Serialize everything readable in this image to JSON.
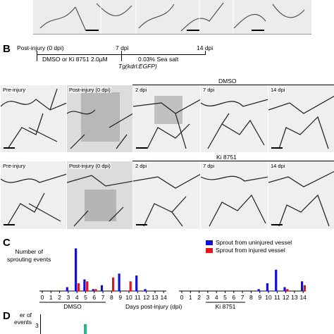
{
  "panel_b": {
    "letter": "B",
    "timeline": {
      "post_injury": "Post-injury (0 dpi)",
      "dpi7": "7 dpi",
      "dpi14": "14 dpi",
      "treatment": "DMSO or Ki 8751 2.0µM",
      "sea_salt": "0.03% Sea salt",
      "transgene": "Tg(kdrl:EGFP)"
    },
    "dmso_label": "DMSO",
    "ki_label": "Ki 8751",
    "row1_frames": [
      "Pre-injury",
      "Post-injury (0 dpi)",
      "2 dpi",
      "7 dpi",
      "14 dpi"
    ],
    "row2_frames": [
      "Pre-injury",
      "Post-injury (0 dpi)",
      "2 dpi",
      "7 dpi",
      "14 dpi"
    ]
  },
  "panel_c": {
    "letter": "C",
    "ylabel_lines": [
      "Number of",
      "sprouting events"
    ],
    "legend": {
      "blue": "Sprout from uninjured vessel",
      "red": "Sprout from injured vessel"
    },
    "xlabel": "Days post-injury (dpi)",
    "group_labels": [
      "DMSO",
      "Ki 8751"
    ],
    "colors": {
      "blue": "#1010d8",
      "red": "#e0141c"
    }
  },
  "panel_d": {
    "letter": "D",
    "ylabel_lines": [
      "er of",
      "events"
    ],
    "ytick": "3",
    "bar_color": "#2bb58a"
  },
  "chart_data": {
    "type": "bar",
    "title": "",
    "xlabel": "Days post-injury (dpi)",
    "ylabel": "Number of sprouting events",
    "groups": [
      {
        "name": "DMSO",
        "categories": [
          "0",
          "1",
          "2",
          "3",
          "4",
          "5",
          "6",
          "7",
          "8",
          "9",
          "10",
          "11",
          "12",
          "13",
          "14"
        ],
        "series": [
          {
            "name": "Sprout from uninjured vessel",
            "values": [
              0,
              0,
              0,
              2,
              22,
              6,
              1,
              3,
              0,
              9,
              0,
              8,
              1,
              0,
              0
            ]
          },
          {
            "name": "Sprout from injured vessel",
            "values": [
              0,
              0,
              0,
              0,
              4,
              5,
              1,
              0,
              7,
              0,
              5,
              0,
              0,
              0,
              0
            ]
          }
        ]
      },
      {
        "name": "Ki 8751",
        "categories": [
          "0",
          "1",
          "2",
          "3",
          "4",
          "5",
          "6",
          "7",
          "8",
          "9",
          "10",
          "11",
          "12",
          "13",
          "14"
        ],
        "series": [
          {
            "name": "Sprout from uninjured vessel",
            "values": [
              0,
              0,
              0,
              0,
              0,
              0,
              0,
              0,
              0,
              1,
              4,
              11,
              2,
              0,
              5
            ]
          },
          {
            "name": "Sprout from injured vessel",
            "values": [
              0,
              0,
              0,
              0,
              0,
              0,
              0,
              0,
              0,
              0,
              0,
              0,
              1,
              0,
              3
            ]
          }
        ]
      }
    ],
    "ylim": [
      0,
      24
    ]
  }
}
